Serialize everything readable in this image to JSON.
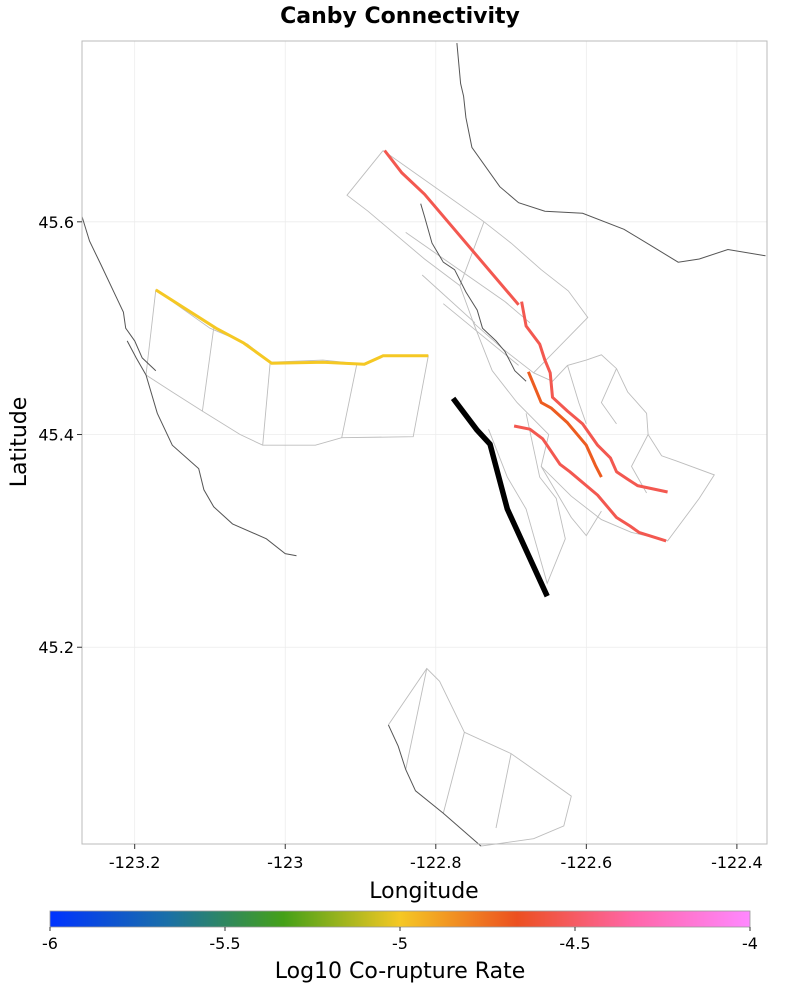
{
  "title": "Canby Connectivity",
  "x_axis": {
    "label": "Longitude",
    "range": [
      -123.27,
      -122.36
    ],
    "ticks": [
      {
        "value": -123.2,
        "label": "-123.2"
      },
      {
        "value": -123.0,
        "label": "-123"
      },
      {
        "value": -122.8,
        "label": "-122.8"
      },
      {
        "value": -122.6,
        "label": "-122.6"
      },
      {
        "value": -122.4,
        "label": "-122.4"
      }
    ]
  },
  "y_axis": {
    "label": "Latitude",
    "range": [
      45.015,
      45.77
    ],
    "ticks": [
      {
        "value": 45.6,
        "label": "45.6"
      },
      {
        "value": 45.4,
        "label": "45.4"
      },
      {
        "value": 45.2,
        "label": "45.2"
      }
    ]
  },
  "colorbar": {
    "label": "Log10 Co-rupture Rate",
    "range": [
      -6,
      -4
    ],
    "ticks": [
      {
        "value": -6,
        "label": "-6"
      },
      {
        "value": -5.5,
        "label": "-5.5"
      },
      {
        "value": -5,
        "label": "-5"
      },
      {
        "value": -4.5,
        "label": "-4.5"
      },
      {
        "value": -4,
        "label": "-4"
      }
    ],
    "stops": [
      "#0033ff",
      "#1a6fa8",
      "#44a018",
      "#f5c824",
      "#ec5020",
      "#ff66a8",
      "#ff88ff"
    ]
  },
  "colors": {
    "grid": "#ececec",
    "frame": "#bbbbbb",
    "trace": "#555555",
    "section": "#bdbdbd",
    "source": "#000000"
  },
  "chart_data": {
    "type": "map",
    "source_fault": {
      "name": "Canby",
      "points": [
        [
          -122.777,
          45.434
        ],
        [
          -122.745,
          45.404
        ],
        [
          -122.728,
          45.391
        ],
        [
          -122.705,
          45.33
        ],
        [
          -122.652,
          45.248
        ]
      ]
    },
    "ruptures": [
      {
        "log_rate": -5.0,
        "points": [
          [
            -123.172,
            45.536
          ],
          [
            -123.092,
            45.5
          ],
          [
            -123.055,
            45.486
          ],
          [
            -123.018,
            45.467
          ],
          [
            -122.95,
            45.468
          ],
          [
            -122.895,
            45.466
          ],
          [
            -122.87,
            45.474
          ],
          [
            -122.81,
            45.474
          ]
        ]
      },
      {
        "log_rate": -4.55,
        "points": [
          [
            -122.868,
            45.667
          ],
          [
            -122.845,
            45.646
          ],
          [
            -122.815,
            45.626
          ],
          [
            -122.69,
            45.522
          ]
        ]
      },
      {
        "log_rate": -4.55,
        "points": [
          [
            -122.686,
            45.525
          ],
          [
            -122.68,
            45.502
          ],
          [
            -122.662,
            45.485
          ],
          [
            -122.655,
            45.47
          ],
          [
            -122.648,
            45.458
          ],
          [
            -122.645,
            45.435
          ],
          [
            -122.625,
            45.422
          ],
          [
            -122.605,
            45.41
          ],
          [
            -122.585,
            45.39
          ],
          [
            -122.568,
            45.378
          ],
          [
            -122.56,
            45.365
          ],
          [
            -122.545,
            45.358
          ],
          [
            -122.532,
            45.352
          ],
          [
            -122.492,
            45.346
          ]
        ]
      },
      {
        "log_rate": -4.7,
        "points": [
          [
            -122.677,
            45.459
          ],
          [
            -122.66,
            45.43
          ],
          [
            -122.647,
            45.425
          ],
          [
            -122.625,
            45.411
          ],
          [
            -122.6,
            45.39
          ],
          [
            -122.588,
            45.371
          ],
          [
            -122.58,
            45.36
          ]
        ]
      },
      {
        "log_rate": -4.55,
        "points": [
          [
            -122.696,
            45.408
          ],
          [
            -122.675,
            45.405
          ],
          [
            -122.658,
            45.396
          ],
          [
            -122.635,
            45.372
          ],
          [
            -122.622,
            45.365
          ],
          [
            -122.585,
            45.343
          ],
          [
            -122.56,
            45.322
          ],
          [
            -122.542,
            45.314
          ],
          [
            -122.53,
            45.308
          ],
          [
            -122.494,
            45.3
          ]
        ]
      }
    ],
    "traces": [
      [
        [
          -122.772,
          45.768
        ],
        [
          -122.767,
          45.73
        ],
        [
          -122.763,
          45.718
        ],
        [
          -122.76,
          45.698
        ],
        [
          -122.752,
          45.67
        ],
        [
          -122.715,
          45.633
        ],
        [
          -122.69,
          45.618
        ],
        [
          -122.655,
          45.61
        ],
        [
          -122.605,
          45.608
        ],
        [
          -122.55,
          45.593
        ],
        [
          -122.515,
          45.578
        ],
        [
          -122.478,
          45.562
        ],
        [
          -122.45,
          45.565
        ],
        [
          -122.412,
          45.574
        ],
        [
          -122.362,
          45.568
        ]
      ],
      [
        [
          -122.82,
          45.617
        ],
        [
          -122.815,
          45.605
        ],
        [
          -122.805,
          45.58
        ],
        [
          -122.79,
          45.562
        ],
        [
          -122.775,
          45.555
        ],
        [
          -122.76,
          45.534
        ],
        [
          -122.745,
          45.517
        ],
        [
          -122.738,
          45.5
        ],
        [
          -122.72,
          45.488
        ],
        [
          -122.708,
          45.478
        ],
        [
          -122.695,
          45.46
        ],
        [
          -122.68,
          45.45
        ]
      ],
      [
        [
          -123.27,
          45.605
        ],
        [
          -123.26,
          45.582
        ],
        [
          -123.245,
          45.56
        ],
        [
          -123.225,
          45.53
        ],
        [
          -123.215,
          45.515
        ],
        [
          -123.212,
          45.5
        ],
        [
          -123.2,
          45.488
        ],
        [
          -123.19,
          45.472
        ],
        [
          -123.172,
          45.46
        ]
      ],
      [
        [
          -123.21,
          45.488
        ],
        [
          -123.198,
          45.472
        ],
        [
          -123.185,
          45.456
        ],
        [
          -123.17,
          45.42
        ],
        [
          -123.15,
          45.39
        ],
        [
          -123.115,
          45.368
        ],
        [
          -123.108,
          45.348
        ],
        [
          -123.095,
          45.332
        ],
        [
          -123.07,
          45.316
        ],
        [
          -123.025,
          45.302
        ],
        [
          -123.0,
          45.288
        ],
        [
          -122.985,
          45.286
        ]
      ],
      [
        [
          -122.863,
          45.127
        ],
        [
          -122.85,
          45.107
        ],
        [
          -122.84,
          45.085
        ],
        [
          -122.827,
          45.065
        ],
        [
          -122.79,
          45.044
        ],
        [
          -122.74,
          45.013
        ]
      ]
    ],
    "sections": [
      [
        [
          -122.87,
          45.667
        ],
        [
          -122.736,
          45.6
        ],
        [
          -122.768,
          45.54
        ],
        [
          -122.815,
          45.565
        ],
        [
          -122.89,
          45.61
        ],
        [
          -122.918,
          45.625
        ],
        [
          -122.87,
          45.667
        ]
      ],
      [
        [
          -122.84,
          45.59
        ],
        [
          -122.708,
          45.525
        ]
      ],
      [
        [
          -122.818,
          45.55
        ],
        [
          -122.748,
          45.505
        ]
      ],
      [
        [
          -122.79,
          45.523
        ],
        [
          -122.69,
          45.465
        ]
      ],
      [
        [
          -122.736,
          45.6
        ],
        [
          -122.7,
          45.58
        ],
        [
          -122.66,
          45.555
        ],
        [
          -122.624,
          45.535
        ],
        [
          -122.598,
          45.51
        ],
        [
          -122.67,
          45.458
        ],
        [
          -122.71,
          45.48
        ],
        [
          -122.75,
          45.505
        ],
        [
          -122.768,
          45.54
        ]
      ],
      [
        [
          -122.708,
          45.525
        ],
        [
          -122.675,
          45.505
        ]
      ],
      [
        [
          -122.75,
          45.505
        ],
        [
          -122.725,
          45.46
        ],
        [
          -122.692,
          45.43
        ],
        [
          -122.65,
          45.4
        ],
        [
          -122.66,
          45.37
        ],
        [
          -122.62,
          45.342
        ],
        [
          -122.58,
          45.32
        ],
        [
          -122.54,
          45.308
        ],
        [
          -122.492,
          45.3
        ],
        [
          -122.45,
          45.34
        ],
        [
          -122.43,
          45.362
        ],
        [
          -122.48,
          45.375
        ],
        [
          -122.5,
          45.38
        ],
        [
          -122.518,
          45.4
        ],
        [
          -122.52,
          45.42
        ],
        [
          -122.545,
          45.44
        ],
        [
          -122.56,
          45.462
        ],
        [
          -122.58,
          45.475
        ],
        [
          -122.6,
          45.47
        ],
        [
          -122.625,
          45.465
        ],
        [
          -122.645,
          45.45
        ],
        [
          -122.67,
          45.458
        ]
      ],
      [
        [
          -122.625,
          45.465
        ],
        [
          -122.61,
          45.43
        ],
        [
          -122.6,
          45.41
        ]
      ],
      [
        [
          -122.56,
          45.462
        ],
        [
          -122.58,
          45.43
        ],
        [
          -122.56,
          45.41
        ]
      ],
      [
        [
          -122.518,
          45.4
        ],
        [
          -122.54,
          45.37
        ],
        [
          -122.52,
          45.345
        ]
      ],
      [
        [
          -122.68,
          45.42
        ],
        [
          -122.662,
          45.36
        ],
        [
          -122.64,
          45.34
        ],
        [
          -122.628,
          45.302
        ],
        [
          -122.652,
          45.26
        ],
        [
          -122.68,
          45.33
        ],
        [
          -122.705,
          45.36
        ],
        [
          -122.73,
          45.405
        ]
      ],
      [
        [
          -122.66,
          45.37
        ],
        [
          -122.62,
          45.322
        ],
        [
          -122.6,
          45.305
        ],
        [
          -122.58,
          45.328
        ]
      ],
      [
        [
          -123.185,
          45.456
        ],
        [
          -123.172,
          45.536
        ],
        [
          -123.1,
          45.5
        ],
        [
          -123.05,
          45.485
        ],
        [
          -123.02,
          45.468
        ],
        [
          -122.95,
          45.47
        ],
        [
          -122.895,
          45.466
        ],
        [
          -122.87,
          45.474
        ],
        [
          -122.81,
          45.474
        ],
        [
          -122.83,
          45.398
        ],
        [
          -122.925,
          45.397
        ],
        [
          -122.96,
          45.39
        ],
        [
          -123.03,
          45.39
        ],
        [
          -123.06,
          45.4
        ],
        [
          -123.11,
          45.422
        ],
        [
          -123.15,
          45.44
        ],
        [
          -123.185,
          45.456
        ]
      ],
      [
        [
          -123.095,
          45.5
        ],
        [
          -123.11,
          45.422
        ]
      ],
      [
        [
          -123.02,
          45.468
        ],
        [
          -123.03,
          45.39
        ]
      ],
      [
        [
          -122.905,
          45.466
        ],
        [
          -122.925,
          45.397
        ]
      ],
      [
        [
          -122.863,
          45.127
        ],
        [
          -122.812,
          45.18
        ],
        [
          -122.795,
          45.168
        ],
        [
          -122.762,
          45.12
        ],
        [
          -122.7,
          45.1
        ],
        [
          -122.62,
          45.06
        ],
        [
          -122.63,
          45.032
        ],
        [
          -122.67,
          45.02
        ],
        [
          -122.74,
          45.013
        ]
      ],
      [
        [
          -122.812,
          45.18
        ],
        [
          -122.84,
          45.085
        ]
      ],
      [
        [
          -122.762,
          45.12
        ],
        [
          -122.79,
          45.044
        ]
      ],
      [
        [
          -122.7,
          45.1
        ],
        [
          -122.72,
          45.03
        ]
      ]
    ]
  }
}
